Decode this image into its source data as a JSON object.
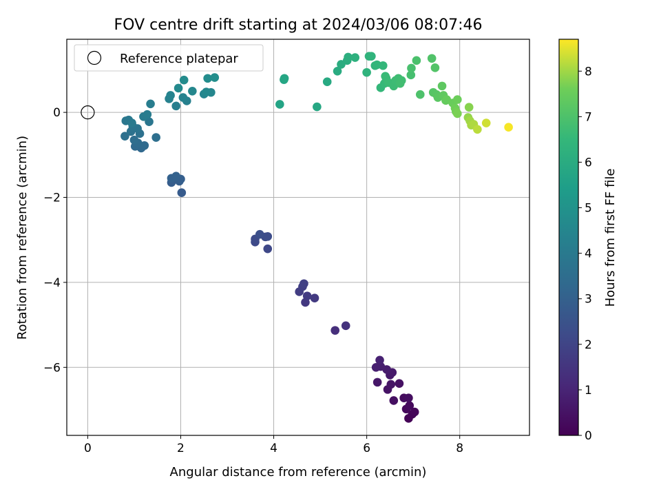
{
  "chart_data": {
    "type": "scatter",
    "title": "FOV centre drift starting at 2024/03/06 08:07:46",
    "xlabel": "Angular distance from reference (arcmin)",
    "ylabel": "Rotation from reference (arcmin)",
    "colorbar_label": "Hours from first FF file",
    "xlim": [
      -0.45,
      9.5
    ],
    "ylim": [
      -7.6,
      1.72
    ],
    "clim": [
      0,
      8.7
    ],
    "colormap": "viridis",
    "grid": true,
    "legend_position": "top-left",
    "x_ticks": [
      0,
      2,
      4,
      6,
      8
    ],
    "y_ticks": [
      -6,
      -4,
      -2,
      0
    ],
    "colorbar_ticks": [
      0,
      1,
      2,
      3,
      4,
      5,
      6,
      7,
      8
    ],
    "reference": {
      "name": "Reference platepar",
      "x": 0,
      "y": 0
    },
    "points": [
      [
        6.9,
        -7.2,
        0.05
      ],
      [
        6.98,
        -7.1,
        0.1
      ],
      [
        7.03,
        -7.05,
        0.15
      ],
      [
        6.85,
        -6.98,
        0.2
      ],
      [
        6.92,
        -6.9,
        0.25
      ],
      [
        6.8,
        -6.72,
        0.3
      ],
      [
        6.9,
        -6.72,
        0.35
      ],
      [
        6.58,
        -6.78,
        0.4
      ],
      [
        6.7,
        -6.38,
        0.45
      ],
      [
        6.45,
        -6.52,
        0.5
      ],
      [
        6.52,
        -6.4,
        0.55
      ],
      [
        6.23,
        -6.35,
        0.6
      ],
      [
        6.5,
        -6.18,
        0.65
      ],
      [
        6.55,
        -6.12,
        0.7
      ],
      [
        6.43,
        -6.05,
        0.75
      ],
      [
        6.3,
        -5.98,
        0.8
      ],
      [
        6.2,
        -6.0,
        0.85
      ],
      [
        6.28,
        -5.83,
        0.9
      ],
      [
        5.32,
        -5.13,
        1.3
      ],
      [
        5.55,
        -5.02,
        1.4
      ],
      [
        4.68,
        -4.47,
        1.6
      ],
      [
        4.88,
        -4.37,
        1.65
      ],
      [
        4.72,
        -4.32,
        1.7
      ],
      [
        4.55,
        -4.22,
        1.75
      ],
      [
        4.62,
        -4.1,
        1.8
      ],
      [
        4.65,
        -4.03,
        1.85
      ],
      [
        3.87,
        -3.21,
        2.1
      ],
      [
        3.6,
        -3.05,
        2.15
      ],
      [
        3.6,
        -2.98,
        2.2
      ],
      [
        3.82,
        -2.93,
        2.25
      ],
      [
        3.87,
        -2.92,
        2.3
      ],
      [
        3.7,
        -2.87,
        2.35
      ],
      [
        2.02,
        -1.89,
        2.8
      ],
      [
        1.8,
        -1.65,
        2.85
      ],
      [
        1.97,
        -1.62,
        2.9
      ],
      [
        2.0,
        -1.57,
        2.95
      ],
      [
        1.8,
        -1.55,
        3.0
      ],
      [
        1.9,
        -1.5,
        3.05
      ],
      [
        1.15,
        -0.84,
        3.3
      ],
      [
        1.02,
        -0.8,
        3.35
      ],
      [
        1.22,
        -0.78,
        3.4
      ],
      [
        1.08,
        -0.72,
        3.45
      ],
      [
        1.0,
        -0.65,
        3.5
      ],
      [
        1.47,
        -0.59,
        3.55
      ],
      [
        0.8,
        -0.56,
        3.6
      ],
      [
        1.12,
        -0.5,
        3.65
      ],
      [
        0.93,
        -0.45,
        3.7
      ],
      [
        1.07,
        -0.38,
        3.75
      ],
      [
        0.97,
        -0.33,
        3.8
      ],
      [
        1.32,
        -0.22,
        3.85
      ],
      [
        0.82,
        -0.2,
        3.9
      ],
      [
        0.88,
        -0.18,
        3.95
      ],
      [
        0.95,
        -0.25,
        4.0
      ],
      [
        1.2,
        -0.1,
        4.05
      ],
      [
        1.28,
        -0.05,
        4.1
      ],
      [
        1.35,
        0.2,
        4.15
      ],
      [
        1.9,
        0.15,
        4.2
      ],
      [
        2.13,
        0.27,
        4.25
      ],
      [
        1.75,
        0.32,
        4.3
      ],
      [
        2.05,
        0.35,
        4.35
      ],
      [
        1.78,
        0.4,
        4.4
      ],
      [
        2.5,
        0.43,
        4.45
      ],
      [
        2.65,
        0.47,
        4.5
      ],
      [
        2.25,
        0.5,
        4.55
      ],
      [
        2.55,
        0.48,
        4.6
      ],
      [
        1.95,
        0.57,
        4.65
      ],
      [
        2.07,
        0.76,
        4.7
      ],
      [
        2.58,
        0.8,
        4.75
      ],
      [
        2.73,
        0.82,
        4.8
      ],
      [
        4.13,
        0.19,
        5.7
      ],
      [
        4.22,
        0.77,
        5.75
      ],
      [
        4.23,
        0.8,
        5.8
      ],
      [
        4.93,
        0.13,
        5.85
      ],
      [
        5.15,
        0.72,
        5.9
      ],
      [
        5.37,
        0.97,
        6.0
      ],
      [
        5.45,
        1.13,
        6.05
      ],
      [
        5.58,
        1.22,
        6.1
      ],
      [
        5.6,
        1.3,
        6.15
      ],
      [
        5.75,
        1.29,
        6.2
      ],
      [
        6.0,
        0.94,
        6.3
      ],
      [
        6.05,
        1.32,
        6.32
      ],
      [
        6.1,
        1.32,
        6.35
      ],
      [
        6.18,
        1.1,
        6.4
      ],
      [
        6.22,
        1.12,
        6.45
      ],
      [
        6.35,
        1.1,
        6.48
      ],
      [
        6.3,
        0.58,
        6.5
      ],
      [
        6.38,
        0.68,
        6.55
      ],
      [
        6.4,
        0.85,
        6.6
      ],
      [
        6.42,
        0.8,
        6.62
      ],
      [
        6.47,
        0.7,
        6.65
      ],
      [
        6.58,
        0.62,
        6.68
      ],
      [
        6.62,
        0.75,
        6.7
      ],
      [
        6.68,
        0.8,
        6.72
      ],
      [
        6.75,
        0.75,
        6.75
      ],
      [
        6.72,
        0.68,
        6.78
      ],
      [
        6.95,
        0.88,
        6.85
      ],
      [
        6.96,
        1.04,
        6.9
      ],
      [
        7.07,
        1.22,
        6.95
      ],
      [
        7.15,
        0.42,
        7.0
      ],
      [
        7.4,
        1.27,
        7.05
      ],
      [
        7.47,
        1.05,
        7.1
      ],
      [
        7.43,
        0.47,
        7.15
      ],
      [
        7.5,
        0.42,
        7.2
      ],
      [
        7.53,
        0.35,
        7.25
      ],
      [
        7.62,
        0.62,
        7.3
      ],
      [
        7.65,
        0.4,
        7.35
      ],
      [
        7.7,
        0.28,
        7.4
      ],
      [
        7.72,
        0.3,
        7.45
      ],
      [
        7.85,
        0.22,
        7.5
      ],
      [
        7.95,
        0.3,
        7.55
      ],
      [
        7.9,
        0.1,
        7.6
      ],
      [
        7.92,
        0.02,
        7.65
      ],
      [
        7.95,
        -0.03,
        7.7
      ],
      [
        8.2,
        0.12,
        7.8
      ],
      [
        8.18,
        -0.12,
        7.9
      ],
      [
        8.22,
        -0.2,
        8.0
      ],
      [
        8.25,
        -0.3,
        8.05
      ],
      [
        8.3,
        -0.28,
        8.1
      ],
      [
        8.38,
        -0.4,
        8.2
      ],
      [
        8.57,
        -0.25,
        8.35
      ],
      [
        9.05,
        -0.35,
        8.65
      ]
    ]
  }
}
